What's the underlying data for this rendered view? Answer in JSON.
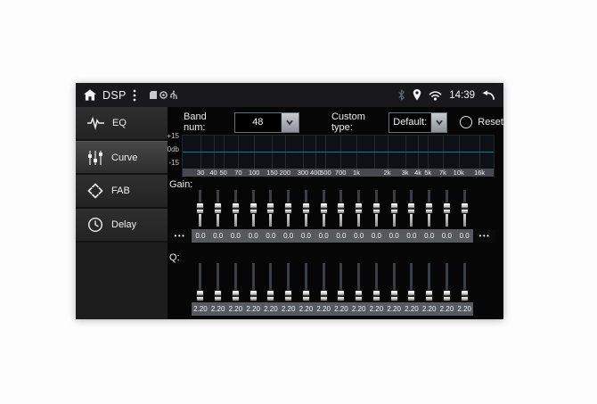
{
  "statusbar": {
    "app_title": "DSP",
    "time": "14:39",
    "left_icons": [
      "home-icon",
      "overflow-menu-icon",
      "sd-card-icon",
      "gps-dot-icon",
      "usb-icon"
    ],
    "right_icons": [
      "bluetooth-icon",
      "location-pin-icon",
      "wifi-icon",
      "back-icon"
    ]
  },
  "sidebar": {
    "items": [
      {
        "id": "eq",
        "label": "EQ",
        "icon": "eq-wave-icon",
        "selected": false
      },
      {
        "id": "curve",
        "label": "Curve",
        "icon": "curve-sliders-icon",
        "selected": true
      },
      {
        "id": "fab",
        "label": "FAB",
        "icon": "fab-arrows-icon",
        "selected": false
      },
      {
        "id": "delay",
        "label": "Delay",
        "icon": "delay-clock-icon",
        "selected": false
      }
    ]
  },
  "controls": {
    "band_num_label": "Band num:",
    "band_num_value": "48",
    "custom_type_label": "Custom type:",
    "custom_type_value": "Default:",
    "reset_label": "Reset"
  },
  "graph": {
    "y_axis_labels": [
      "+15",
      "0db",
      "-15"
    ],
    "y_min_db": -15,
    "y_max_db": 15,
    "x_min_hz": 20,
    "x_max_hz": 22000,
    "x_ticks": [
      {
        "hz": 30,
        "label": "30"
      },
      {
        "hz": 40,
        "label": "40"
      },
      {
        "hz": 50,
        "label": "50"
      },
      {
        "hz": 70,
        "label": "70"
      },
      {
        "hz": 100,
        "label": "100"
      },
      {
        "hz": 150,
        "label": "150"
      },
      {
        "hz": 200,
        "label": "200"
      },
      {
        "hz": 300,
        "label": "300"
      },
      {
        "hz": 400,
        "label": "400"
      },
      {
        "hz": 500,
        "label": "500"
      },
      {
        "hz": 700,
        "label": "700"
      },
      {
        "hz": 1000,
        "label": "1k"
      },
      {
        "hz": 2000,
        "label": "2k"
      },
      {
        "hz": 3000,
        "label": "3k"
      },
      {
        "hz": 4000,
        "label": "4k"
      },
      {
        "hz": 5000,
        "label": "5k"
      },
      {
        "hz": 7000,
        "label": "7k"
      },
      {
        "hz": 10000,
        "label": "10k"
      },
      {
        "hz": 16000,
        "label": "16k"
      }
    ],
    "grid_freqs_hz": [
      30,
      40,
      50,
      70,
      100,
      150,
      200,
      300,
      400,
      500,
      700,
      1000,
      1500,
      2000,
      3000,
      4000,
      5000,
      7000,
      10000,
      16000
    ],
    "curve_db": 0,
    "curve_color": "#2f6f7d"
  },
  "gain": {
    "label": "Gain:",
    "min": -15,
    "max": 15,
    "more_left": "•••",
    "more_right": "•••",
    "values": [
      "0.0",
      "0.0",
      "0.0",
      "0.0",
      "0.0",
      "0.0",
      "0.0",
      "0.0",
      "0.0",
      "0.0",
      "0.0",
      "0.0",
      "0.0",
      "0.0",
      "0.0",
      "0.0"
    ]
  },
  "q": {
    "label": "Q:",
    "values": [
      "2.20",
      "2.20",
      "2.20",
      "2.20",
      "2.20",
      "2.20",
      "2.20",
      "2.20",
      "2.20",
      "2.20",
      "2.20",
      "2.20",
      "2.20",
      "2.20",
      "2.20",
      "2.20"
    ]
  }
}
